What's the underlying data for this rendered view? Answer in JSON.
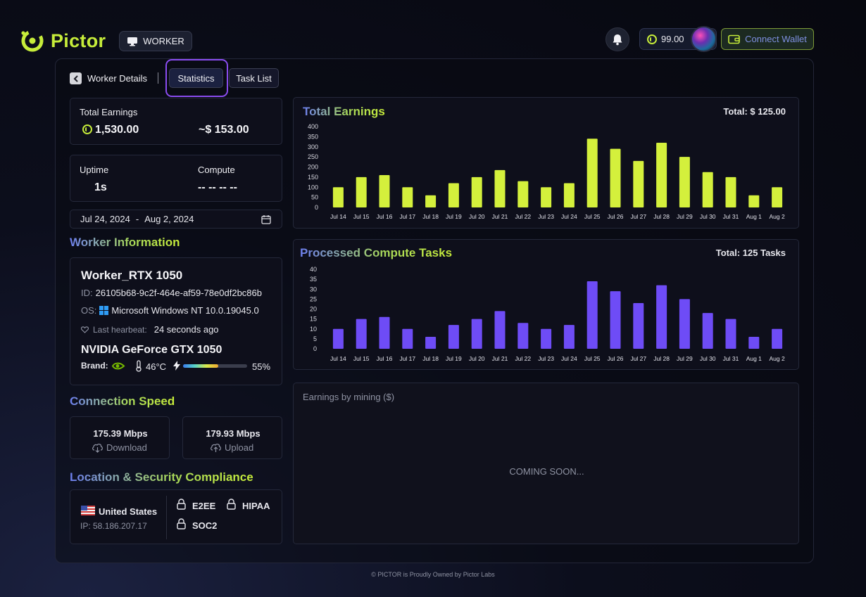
{
  "header": {
    "brand": "Pictor",
    "role_label": "WORKER",
    "balance": "99.00",
    "connect_wallet_label": "Connect Wallet"
  },
  "nav": {
    "back_label": "Worker Details",
    "tabs": [
      {
        "label": "Statistics",
        "active": true
      },
      {
        "label": "Task List",
        "active": false
      }
    ]
  },
  "earnings": {
    "title": "Total Earnings",
    "tokens": "1,530.00",
    "usd": "~$ 153.00"
  },
  "uptime": {
    "uptime_label": "Uptime",
    "uptime_value": "1s",
    "compute_label": "Compute",
    "compute_value": "-- -- -- --"
  },
  "date_range": {
    "start": "Jul 24, 2024",
    "separator": "-",
    "end": "Aug 2, 2024"
  },
  "worker_info": {
    "section_title": "Worker Information",
    "name": "Worker_RTX 1050",
    "id_label": "ID:",
    "id_value": "26105b68-9c2f-464e-af59-78e0df2bc86b",
    "os_label": "OS:",
    "os_value": "Microsoft Windows NT 10.0.19045.0",
    "heartbeat_label": "Last hearbeat:",
    "heartbeat_value": "24 seconds ago",
    "gpu": "NVIDIA GeForce GTX 1050",
    "brand_label": "Brand:",
    "temperature": "46°C",
    "usage_percent": "55%",
    "usage_fraction": 0.55
  },
  "connection": {
    "section_title": "Connection Speed",
    "download_value": "175.39 Mbps",
    "download_label": "Download",
    "upload_value": "179.93 Mbps",
    "upload_label": "Upload"
  },
  "location": {
    "section_title": "Location & Security Compliance",
    "country": "United States",
    "ip": "IP: 58.186.207.17",
    "compliance": [
      "E2EE",
      "HIPAA",
      "SOC2"
    ]
  },
  "earnings_chart": {
    "title": "Total Earnings",
    "total": "Total: $ 125.00",
    "color": "#d4f03c"
  },
  "tasks_chart": {
    "title": "Processed Compute Tasks",
    "total": "Total: 125 Tasks",
    "color": "#6e4cf6"
  },
  "mining": {
    "title": "Earnings by mining ($)",
    "placeholder": "COMING SOON..."
  },
  "footer": {
    "text": "© PICTOR is Proudly Owned by Pictor Labs"
  },
  "colors": {
    "accent": "#c6ec3a",
    "purple": "#6e4cf6",
    "focus": "#8a4cf0"
  },
  "chart_data": [
    {
      "type": "bar",
      "title": "Total Earnings",
      "categories": [
        "Jul 14",
        "Jul 15",
        "Jul 16",
        "Jul 17",
        "Jul 18",
        "Jul 19",
        "Jul 20",
        "Jul 21",
        "Jul 22",
        "Jul 23",
        "Jul 24",
        "Jul 25",
        "Jul 26",
        "Jul 27",
        "Jul 28",
        "Jul 29",
        "Jul 30",
        "Jul 31",
        "Aug 1",
        "Aug 2"
      ],
      "values": [
        100,
        150,
        160,
        100,
        60,
        120,
        150,
        185,
        130,
        100,
        120,
        340,
        290,
        230,
        320,
        250,
        175,
        150,
        60,
        100
      ],
      "ylim": [
        0,
        400
      ],
      "yticks": [
        0,
        50,
        100,
        150,
        200,
        250,
        300,
        350,
        400
      ],
      "grid": false
    },
    {
      "type": "bar",
      "title": "Processed Compute Tasks",
      "categories": [
        "Jul 14",
        "Jul 15",
        "Jul 16",
        "Jul 17",
        "Jul 18",
        "Jul 19",
        "Jul 20",
        "Jul 21",
        "Jul 22",
        "Jul 23",
        "Jul 24",
        "Jul 25",
        "Jul 26",
        "Jul 27",
        "Jul 28",
        "Jul 29",
        "Jul 30",
        "Jul 31",
        "Aug 1",
        "Aug 2"
      ],
      "values": [
        10,
        15,
        16,
        10,
        6,
        12,
        15,
        19,
        13,
        10,
        12,
        34,
        29,
        23,
        32,
        25,
        18,
        15,
        6,
        10
      ],
      "ylim": [
        0,
        40
      ],
      "yticks": [
        0,
        5,
        10,
        15,
        20,
        25,
        30,
        35,
        40
      ],
      "grid": false
    }
  ]
}
